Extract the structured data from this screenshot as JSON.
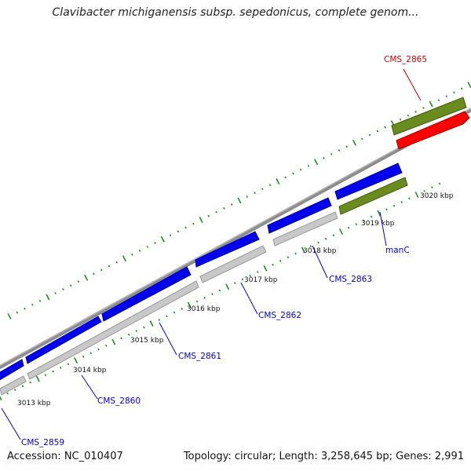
{
  "header": {
    "title": "Clavibacter michiganensis subsp. sepedonicus, complete genom..."
  },
  "footer": {
    "accession": "Accession: NC_010407",
    "summary": "Topology: circular; Length: 3,258,645 bp; Genes: 2,991"
  },
  "map": {
    "scale_ticks": [
      "3013 kbp",
      "3014 kbp",
      "3015 kbp",
      "3016 kbp",
      "3017 kbp",
      "3018 kbp",
      "3019 kbp",
      "3020 kbp"
    ],
    "gene_labels": [
      {
        "label": "CMS_2859",
        "color": "#0000cc"
      },
      {
        "label": "CMS_2860",
        "color": "#0000cc"
      },
      {
        "label": "CMS_2861",
        "color": "#0000cc"
      },
      {
        "label": "CMS_2862",
        "color": "#0000cc"
      },
      {
        "label": "CMS_2863",
        "color": "#0000cc"
      },
      {
        "label": "manC",
        "color": "#0000cc"
      },
      {
        "label": "CMS_2865",
        "color": "#cc0000"
      }
    ],
    "colors": {
      "cds_forward": "#0000ee",
      "cds_reverse_shadow": "#c8c8c8",
      "rna_gene": "#6a8c1e",
      "highlight_gene": "#ff0000",
      "backbone": "#8c8c8c",
      "tick_marks": "#1e8c1e"
    }
  }
}
